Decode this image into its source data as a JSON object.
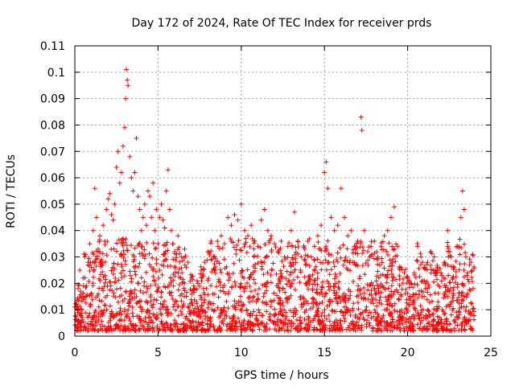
{
  "chart_data": {
    "type": "scatter",
    "title": "Day 172 of 2024, Rate Of TEC Index for receiver prds",
    "xlabel": "GPS time / hours",
    "ylabel": "ROTI / TECUs",
    "xlim": [
      0,
      25
    ],
    "ylim": [
      0,
      0.11
    ],
    "x_ticks": [
      0,
      5,
      10,
      15,
      20,
      25
    ],
    "x_tick_labels": [
      "0",
      "5",
      "10",
      "15",
      "20",
      "25"
    ],
    "y_ticks": [
      0,
      0.01,
      0.02,
      0.03,
      0.04,
      0.05,
      0.06,
      0.07,
      0.08,
      0.09,
      0.1,
      0.11
    ],
    "y_tick_labels": [
      "0",
      "0.01",
      "0.02",
      "0.03",
      "0.04",
      "0.05",
      "0.06",
      "0.07",
      "0.08",
      "0.09",
      "0.1",
      "0.11"
    ],
    "grid": true,
    "marker": "+",
    "color": "#ff0000",
    "series": [
      {
        "values": [
          [
            0.1,
            0.012
          ],
          [
            0.2,
            0.018
          ],
          [
            0.3,
            0.025
          ],
          [
            0.4,
            0.015
          ],
          [
            0.5,
            0.022
          ],
          [
            0.6,
            0.03
          ],
          [
            0.7,
            0.019
          ],
          [
            0.8,
            0.028
          ],
          [
            0.9,
            0.035
          ],
          [
            1.0,
            0.026
          ],
          [
            1.1,
            0.04
          ],
          [
            1.2,
            0.056
          ],
          [
            1.3,
            0.045
          ],
          [
            1.4,
            0.033
          ],
          [
            1.5,
            0.038
          ],
          [
            1.6,
            0.029
          ],
          [
            1.7,
            0.042
          ],
          [
            1.8,
            0.036
          ],
          [
            1.9,
            0.048
          ],
          [
            2.0,
            0.052
          ],
          [
            2.1,
            0.054
          ],
          [
            2.2,
            0.046
          ],
          [
            2.3,
            0.044
          ],
          [
            2.4,
            0.05
          ],
          [
            2.5,
            0.064
          ],
          [
            2.6,
            0.07
          ],
          [
            2.7,
            0.058
          ],
          [
            2.8,
            0.062
          ],
          [
            2.9,
            0.072
          ],
          [
            3.0,
            0.079
          ],
          [
            3.05,
            0.09
          ],
          [
            3.1,
            0.101
          ],
          [
            3.15,
            0.097
          ],
          [
            3.2,
            0.095
          ],
          [
            3.3,
            0.068
          ],
          [
            3.4,
            0.06
          ],
          [
            3.5,
            0.055
          ],
          [
            3.6,
            0.062
          ],
          [
            3.7,
            0.075
          ],
          [
            3.8,
            0.053
          ],
          [
            3.9,
            0.048
          ],
          [
            4.0,
            0.04
          ],
          [
            4.1,
            0.045
          ],
          [
            4.2,
            0.05
          ],
          [
            4.3,
            0.042
          ],
          [
            4.4,
            0.055
          ],
          [
            4.5,
            0.053
          ],
          [
            4.6,
            0.045
          ],
          [
            4.7,
            0.058
          ],
          [
            4.8,
            0.04
          ],
          [
            4.9,
            0.048
          ],
          [
            5.0,
            0.035
          ],
          [
            5.1,
            0.045
          ],
          [
            5.2,
            0.05
          ],
          [
            5.3,
            0.044
          ],
          [
            5.4,
            0.041
          ],
          [
            5.5,
            0.055
          ],
          [
            5.6,
            0.063
          ],
          [
            5.7,
            0.048
          ],
          [
            5.8,
            0.04
          ],
          [
            5.9,
            0.035
          ],
          [
            6.0,
            0.032
          ],
          [
            6.2,
            0.038
          ],
          [
            6.4,
            0.03
          ],
          [
            6.6,
            0.033
          ],
          [
            6.8,
            0.028
          ],
          [
            7.0,
            0.022
          ],
          [
            7.2,
            0.018
          ],
          [
            7.4,
            0.02
          ],
          [
            7.6,
            0.025
          ],
          [
            7.8,
            0.028
          ],
          [
            8.0,
            0.032
          ],
          [
            8.2,
            0.036
          ],
          [
            8.4,
            0.03
          ],
          [
            8.6,
            0.034
          ],
          [
            8.8,
            0.038
          ],
          [
            9.0,
            0.035
          ],
          [
            9.2,
            0.045
          ],
          [
            9.4,
            0.042
          ],
          [
            9.6,
            0.046
          ],
          [
            9.8,
            0.044
          ],
          [
            10.0,
            0.05
          ],
          [
            10.2,
            0.04
          ],
          [
            10.4,
            0.038
          ],
          [
            10.6,
            0.042
          ],
          [
            10.8,
            0.036
          ],
          [
            11.0,
            0.034
          ],
          [
            11.2,
            0.044
          ],
          [
            11.4,
            0.048
          ],
          [
            11.6,
            0.04
          ],
          [
            11.8,
            0.038
          ],
          [
            12.0,
            0.035
          ],
          [
            12.2,
            0.032
          ],
          [
            12.4,
            0.036
          ],
          [
            12.6,
            0.03
          ],
          [
            12.8,
            0.034
          ],
          [
            13.0,
            0.04
          ],
          [
            13.2,
            0.047
          ],
          [
            13.4,
            0.036
          ],
          [
            13.6,
            0.03
          ],
          [
            13.8,
            0.033
          ],
          [
            14.0,
            0.036
          ],
          [
            14.2,
            0.03
          ],
          [
            14.4,
            0.034
          ],
          [
            14.6,
            0.038
          ],
          [
            14.8,
            0.042
          ],
          [
            15.0,
            0.062
          ],
          [
            15.1,
            0.066
          ],
          [
            15.2,
            0.056
          ],
          [
            15.4,
            0.045
          ],
          [
            15.6,
            0.04
          ],
          [
            15.8,
            0.042
          ],
          [
            16.0,
            0.056
          ],
          [
            16.2,
            0.045
          ],
          [
            16.4,
            0.038
          ],
          [
            16.6,
            0.04
          ],
          [
            16.8,
            0.034
          ],
          [
            17.0,
            0.036
          ],
          [
            17.2,
            0.083
          ],
          [
            17.25,
            0.078
          ],
          [
            17.4,
            0.04
          ],
          [
            17.6,
            0.032
          ],
          [
            17.8,
            0.034
          ],
          [
            18.0,
            0.036
          ],
          [
            18.2,
            0.03
          ],
          [
            18.4,
            0.034
          ],
          [
            18.6,
            0.038
          ],
          [
            18.8,
            0.04
          ],
          [
            19.0,
            0.045
          ],
          [
            19.2,
            0.049
          ],
          [
            19.4,
            0.034
          ],
          [
            19.6,
            0.026
          ],
          [
            19.8,
            0.024
          ],
          [
            20.0,
            0.022
          ],
          [
            20.2,
            0.02
          ],
          [
            20.4,
            0.024
          ],
          [
            20.6,
            0.034
          ],
          [
            20.8,
            0.03
          ],
          [
            21.0,
            0.026
          ],
          [
            21.2,
            0.028
          ],
          [
            21.4,
            0.032
          ],
          [
            21.6,
            0.03
          ],
          [
            21.8,
            0.026
          ],
          [
            22.0,
            0.024
          ],
          [
            22.2,
            0.028
          ],
          [
            22.4,
            0.04
          ],
          [
            22.6,
            0.03
          ],
          [
            22.8,
            0.026
          ],
          [
            23.0,
            0.034
          ],
          [
            23.2,
            0.045
          ],
          [
            23.3,
            0.055
          ],
          [
            23.4,
            0.048
          ],
          [
            23.5,
            0.03
          ],
          [
            23.6,
            0.024
          ],
          [
            23.8,
            0.028
          ],
          [
            23.9,
            0.031
          ]
        ]
      }
    ]
  }
}
